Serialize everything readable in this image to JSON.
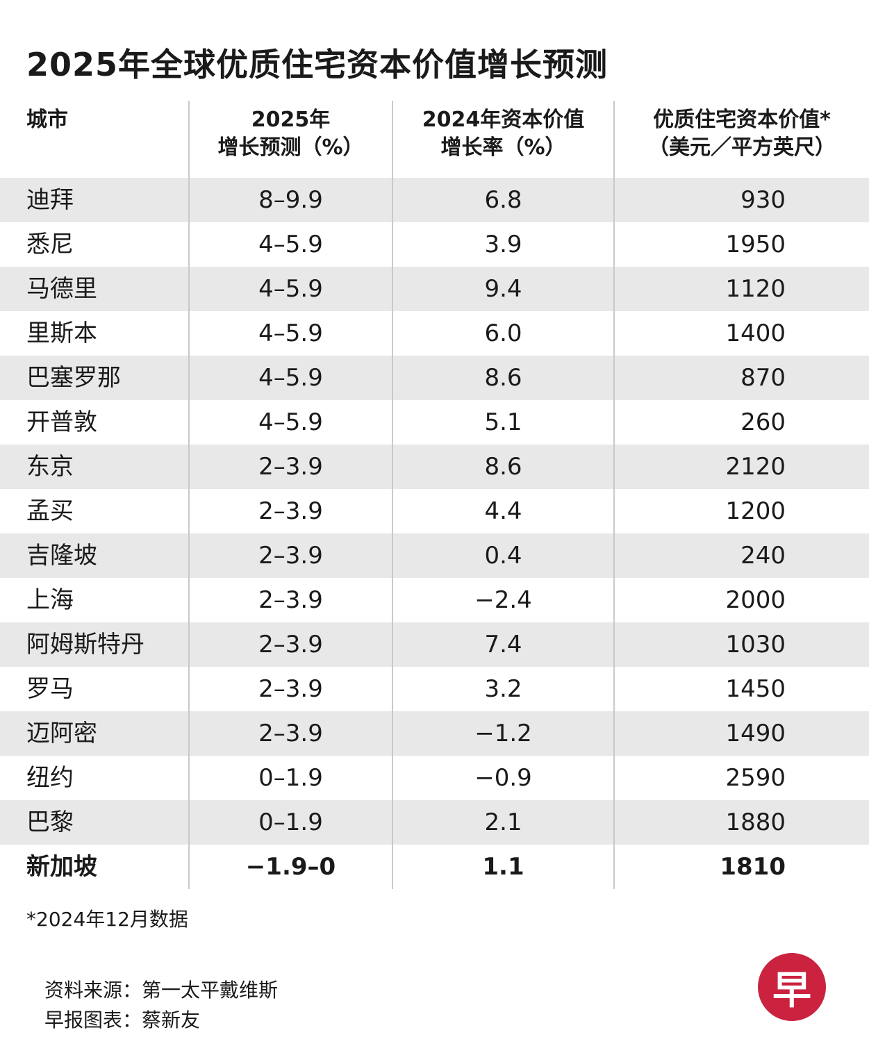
{
  "title": "2025年全球优质住宅资本价值增长预测",
  "chart_data": {
    "type": "table",
    "title": "2025年全球优质住宅资本价值增长预测",
    "columns": [
      "城市",
      "2025年\n增长预测（%）",
      "2024年资本价值\n增长率（%）",
      "优质住宅资本价值*\n（美元／平方英尺）"
    ],
    "rows": [
      [
        "迪拜",
        "8–9.9",
        "6.8",
        "930"
      ],
      [
        "悉尼",
        "4–5.9",
        "3.9",
        "1950"
      ],
      [
        "马德里",
        "4–5.9",
        "9.4",
        "1120"
      ],
      [
        "里斯本",
        "4–5.9",
        "6.0",
        "1400"
      ],
      [
        "巴塞罗那",
        "4–5.9",
        "8.6",
        "870"
      ],
      [
        "开普敦",
        "4–5.9",
        "5.1",
        "260"
      ],
      [
        "东京",
        "2–3.9",
        "8.6",
        "2120"
      ],
      [
        "孟买",
        "2–3.9",
        "4.4",
        "1200"
      ],
      [
        "吉隆坡",
        "2–3.9",
        "0.4",
        "240"
      ],
      [
        "上海",
        "2–3.9",
        "−2.4",
        "2000"
      ],
      [
        "阿姆斯特丹",
        "2–3.9",
        "7.4",
        "1030"
      ],
      [
        "罗马",
        "2–3.9",
        "3.2",
        "1450"
      ],
      [
        "迈阿密",
        "2–3.9",
        "−1.2",
        "1490"
      ],
      [
        "纽约",
        "0–1.9",
        "−0.9",
        "2590"
      ],
      [
        "巴黎",
        "0–1.9",
        "2.1",
        "1880"
      ],
      [
        "新加坡",
        "−1.9–0",
        "1.1",
        "1810"
      ]
    ]
  },
  "footnote": "*2024年12月数据",
  "source": "资料来源：第一太平戴维斯",
  "credit": "早报图表：蔡新友",
  "logo": {
    "char": "早",
    "color": "#cb2240"
  }
}
